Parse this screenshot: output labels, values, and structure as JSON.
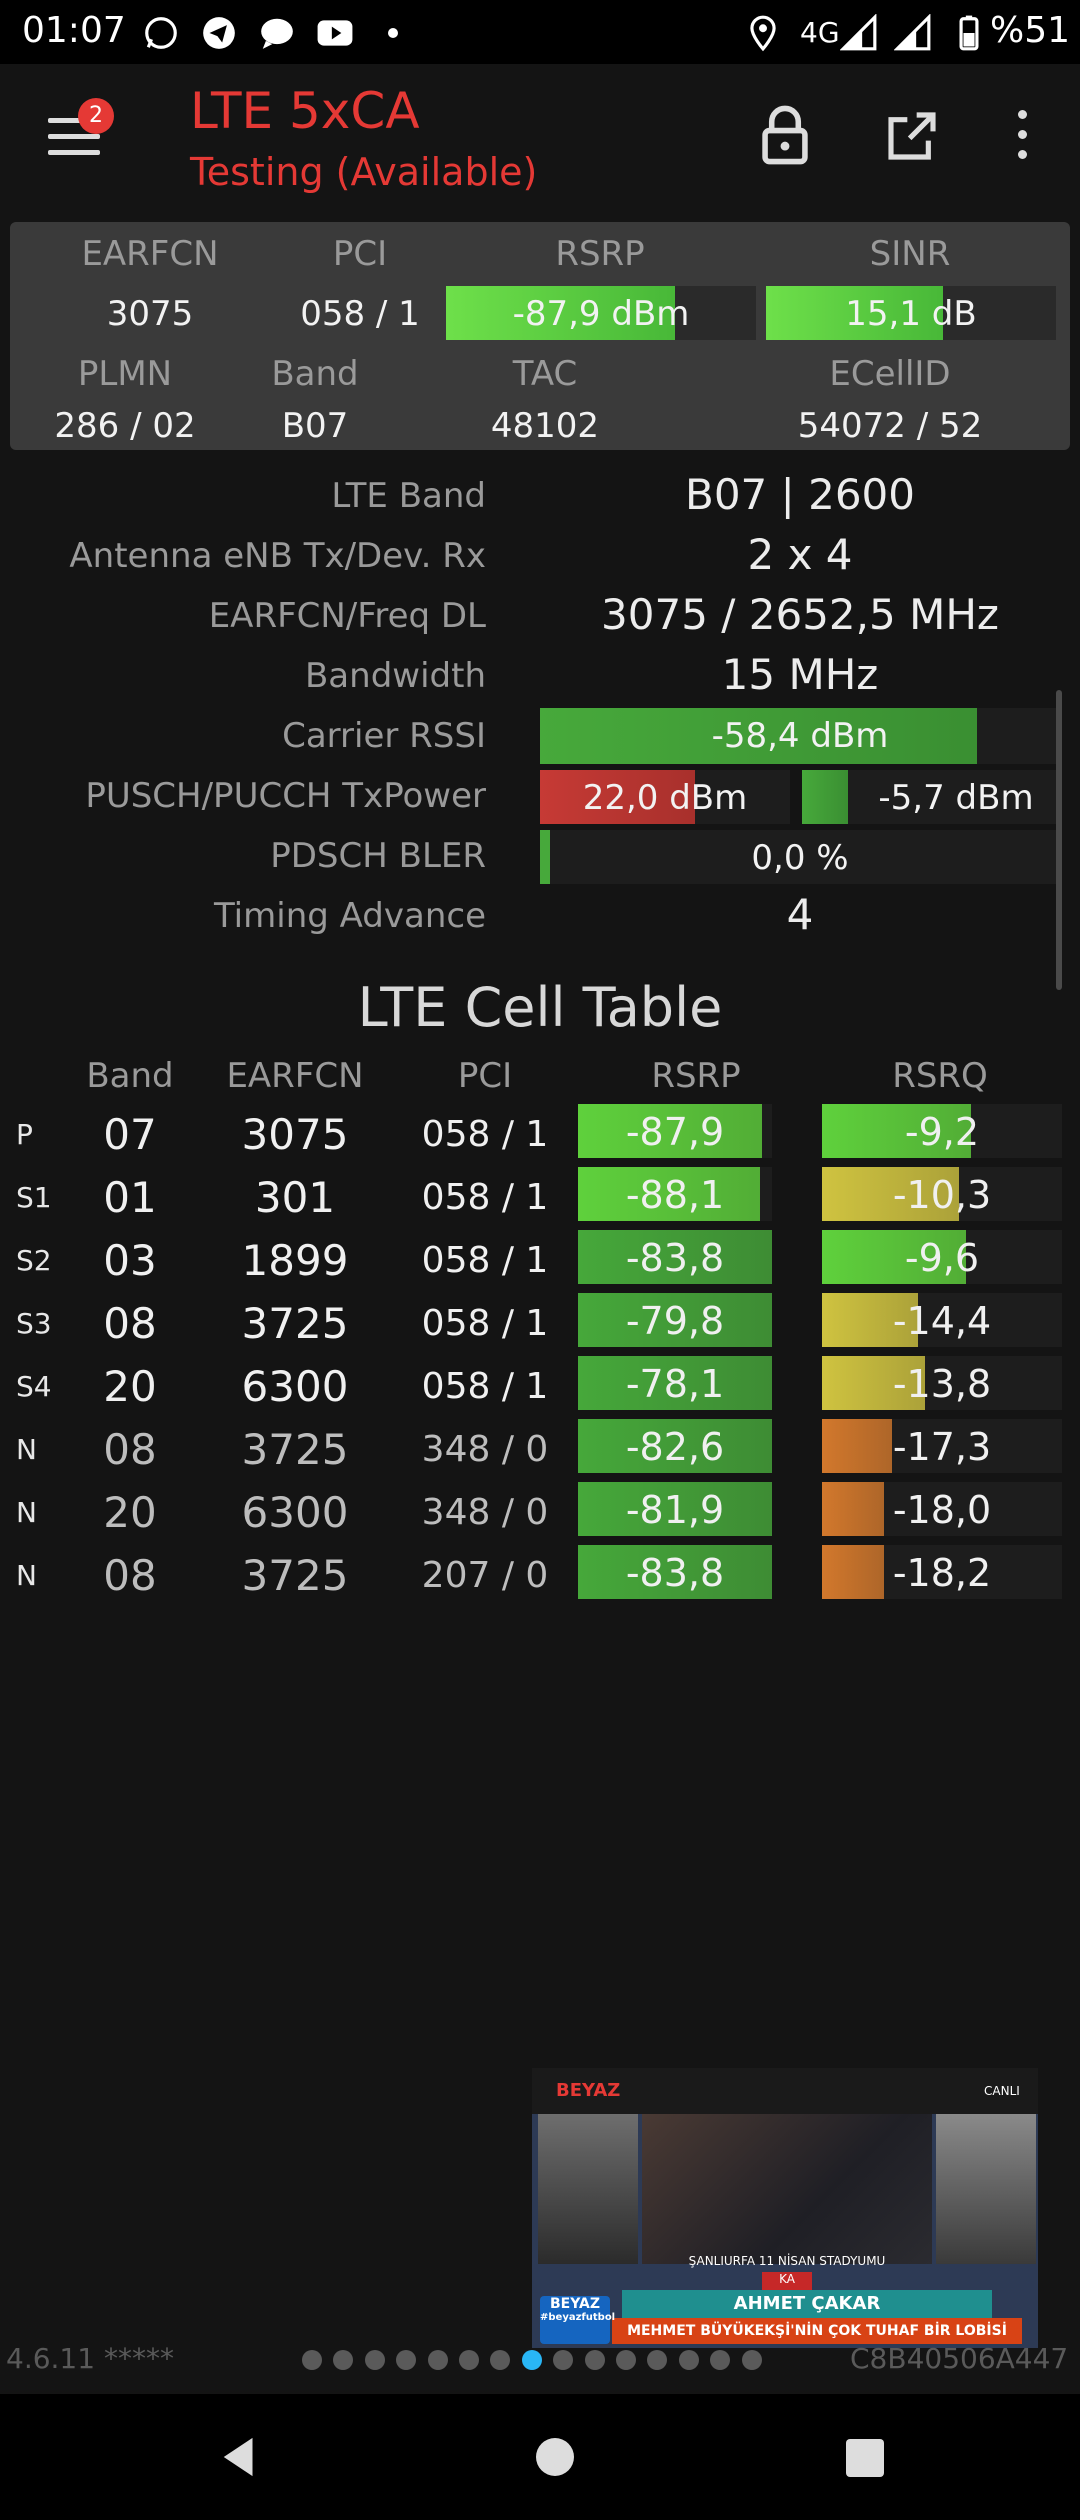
{
  "status_bar": {
    "time": "01:07",
    "network": "4G",
    "battery": "%51",
    "icons": [
      "whatsapp-icon",
      "telegram-icon",
      "chat-icon",
      "youtube-icon",
      "location-icon",
      "signal-icon",
      "battery-icon"
    ]
  },
  "app_bar": {
    "badge": "2",
    "title": "LTE 5xCA",
    "subtitle": "Testing (Available)",
    "icons": [
      "menu-icon",
      "lock-icon",
      "open-external-icon",
      "more-vert-icon"
    ]
  },
  "panel": {
    "headers1": [
      "EARFCN",
      "PCI",
      "RSRP",
      "SINR"
    ],
    "earfcn": "3075",
    "pci": "058 / 1",
    "rsrp": "-87,9 dBm",
    "rsrp_fill": 0.74,
    "sinr": "15,1 dB",
    "sinr_fill": 0.61,
    "headers2": [
      "PLMN",
      "Band",
      "TAC",
      "ECellID"
    ],
    "plmn": "286 / 02",
    "band": "B07",
    "tac": "48102",
    "ecellid": "54072 / 52"
  },
  "info": {
    "lte_band_label": "LTE Band",
    "lte_band": "B07 | 2600",
    "antenna_label": "Antenna eNB Tx/Dev. Rx",
    "antenna": "2 x 4",
    "earfcn_label": "EARFCN/Freq DL",
    "earfcn": "3075 / 2652,5 MHz",
    "bandwidth_label": "Bandwidth",
    "bandwidth": "15 MHz",
    "rssi_label": "Carrier RSSI",
    "rssi": "-58,4 dBm",
    "rssi_fill": 0.84,
    "txpower_label": "PUSCH/PUCCH TxPower",
    "pusch": "22,0 dBm",
    "pusch_fill": 0.62,
    "pucch": "-5,7 dBm",
    "pucch_fill": 0.18,
    "bler_label": "PDSCH BLER",
    "bler": "0,0 %",
    "bler_fill": 0.02,
    "ta_label": "Timing Advance",
    "ta": "4"
  },
  "table": {
    "title": "LTE Cell Table",
    "headers": [
      "Band",
      "EARFCN",
      "PCI",
      "RSRP",
      "RSRQ"
    ],
    "rows": [
      {
        "tag": "P",
        "band": "07",
        "earfcn": "3075",
        "pci": "058 / 1",
        "rsrp": "-87,9",
        "rsrq": "-9,2",
        "rsrp_fill": 0.95,
        "rsrq_fill": 0.62,
        "rsrp_color": "#5fd13c",
        "rsrq_color": "#5fd13c"
      },
      {
        "tag": "S1",
        "band": "01",
        "earfcn": "301",
        "pci": "058 / 1",
        "rsrp": "-88,1",
        "rsrq": "-10,3",
        "rsrp_fill": 0.94,
        "rsrq_fill": 0.57,
        "rsrp_color": "#5fd13c",
        "rsrq_color": "#cfc340"
      },
      {
        "tag": "S2",
        "band": "03",
        "earfcn": "1899",
        "pci": "058 / 1",
        "rsrp": "-83,8",
        "rsrq": "-9,6",
        "rsrp_fill": 1.0,
        "rsrq_fill": 0.6,
        "rsrp_color": "#46a83a",
        "rsrq_color": "#5fd13c"
      },
      {
        "tag": "S3",
        "band": "08",
        "earfcn": "3725",
        "pci": "058 / 1",
        "rsrp": "-79,8",
        "rsrq": "-14,4",
        "rsrp_fill": 1.0,
        "rsrq_fill": 0.4,
        "rsrp_color": "#46a83a",
        "rsrq_color": "#cfc340"
      },
      {
        "tag": "S4",
        "band": "20",
        "earfcn": "6300",
        "pci": "058 / 1",
        "rsrp": "-78,1",
        "rsrq": "-13,8",
        "rsrp_fill": 1.0,
        "rsrq_fill": 0.43,
        "rsrp_color": "#46a83a",
        "rsrq_color": "#cfc340"
      },
      {
        "tag": "N",
        "band": "08",
        "earfcn": "3725",
        "pci": "348 / 0",
        "rsrp": "-82,6",
        "rsrq": "-17,3",
        "rsrp_fill": 1.0,
        "rsrq_fill": 0.29,
        "rsrp_color": "#46a83a",
        "rsrq_color": "#d2782c"
      },
      {
        "tag": "N",
        "band": "20",
        "earfcn": "6300",
        "pci": "348 / 0",
        "rsrp": "-81,9",
        "rsrq": "-18,0",
        "rsrp_fill": 1.0,
        "rsrq_fill": 0.26,
        "rsrp_color": "#46a83a",
        "rsrq_color": "#d2782c"
      },
      {
        "tag": "N",
        "band": "08",
        "earfcn": "3725",
        "pci": "207 / 0",
        "rsrp": "-83,8",
        "rsrq": "-18,2",
        "rsrp_fill": 1.0,
        "rsrq_fill": 0.26,
        "rsrp_color": "#46a83a",
        "rsrq_color": "#d2782c"
      }
    ]
  },
  "footer": {
    "version": "4.6.11 *****",
    "id": "C8B40506A447",
    "page_count": 15,
    "active_page": 7
  },
  "video": {
    "channel": "BEYAZ",
    "live": "CANLI",
    "location": "ŞANLIURFA 11 NİSAN STADYUMU",
    "tag": "KA",
    "name": "AHMET ÇAKAR",
    "caption": "MEHMET BÜYÜKEKŞİ'NİN ÇOK TUHAF BİR LOBİSİ VAR",
    "brand": "BEYAZ",
    "hashtag": "#beyazfutbol"
  }
}
